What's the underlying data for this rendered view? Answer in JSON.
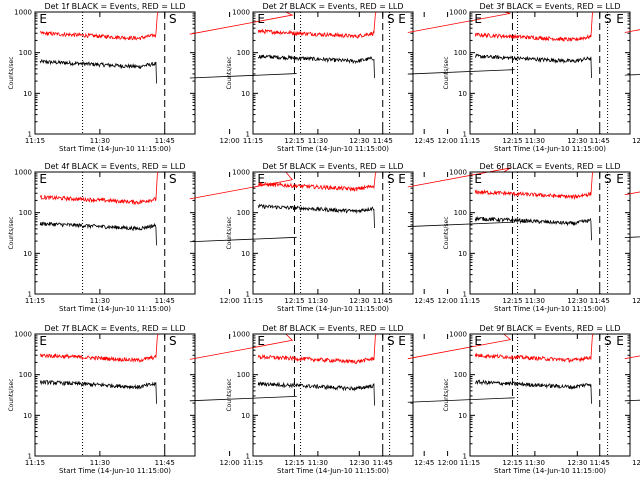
{
  "chart_data": {
    "type": "line",
    "xlabel": "Start Time (14-Jun-10 11:15:00)",
    "ylabel": "Counts/sec",
    "x_ticks": [
      "11:15",
      "11:30",
      "11:45",
      "12:00",
      "12:15",
      "12:30",
      "12:45"
    ],
    "xlim_minutes_after_1115": [
      0,
      37
    ],
    "y_ticks": [
      "1",
      "10",
      "100",
      "1000"
    ],
    "ylim": [
      1,
      1000
    ],
    "y_scale": "log",
    "series_colors": {
      "events": "#000000",
      "lld": "#ff0000"
    },
    "markers": {
      "dotted_x": [
        "11:26",
        "12:37"
      ],
      "dashed_x": [
        "11:45",
        "12:15"
      ],
      "labels": [
        {
          "text": "E",
          "at": "11:16"
        },
        {
          "text": "S",
          "at": "11:46"
        },
        {
          "text": "E",
          "at": "12:39"
        }
      ]
    },
    "panels": [
      {
        "title": "Det 1f BLACK = Events, RED = LLD",
        "black_before": 50,
        "black_after": 68,
        "red_before": 250,
        "red_after": 300
      },
      {
        "title": "Det 2f BLACK = Events, RED = LLD",
        "black_before": 68,
        "black_after": 85,
        "red_before": 280,
        "red_after": 330
      },
      {
        "title": "Det 3f BLACK = Events, RED = LLD",
        "black_before": 68,
        "black_after": 80,
        "red_before": 230,
        "red_after": 330
      },
      {
        "title": "Det 4f BLACK = Events, RED = LLD",
        "black_before": 45,
        "black_after": 55,
        "red_before": 200,
        "red_after": 230
      },
      {
        "title": "Det 5f BLACK = Events, RED = LLD",
        "black_before": 120,
        "black_after": 130,
        "red_before": 420,
        "red_after": 450
      },
      {
        "title": "Det 6f BLACK = Events, RED = LLD",
        "black_before": 60,
        "black_after": 70,
        "red_before": 270,
        "red_after": 290
      },
      {
        "title": "Det 7f BLACK = Events, RED = LLD",
        "black_before": 55,
        "black_after": 65,
        "red_before": 250,
        "red_after": 250
      },
      {
        "title": "Det 8f BLACK = Events, RED = LLD",
        "black_before": 50,
        "black_after": 60,
        "red_before": 230,
        "red_after": 260
      },
      {
        "title": "Det 9f BLACK = Events, RED = LLD",
        "black_before": 55,
        "black_after": 65,
        "red_before": 250,
        "red_after": 260
      }
    ]
  }
}
